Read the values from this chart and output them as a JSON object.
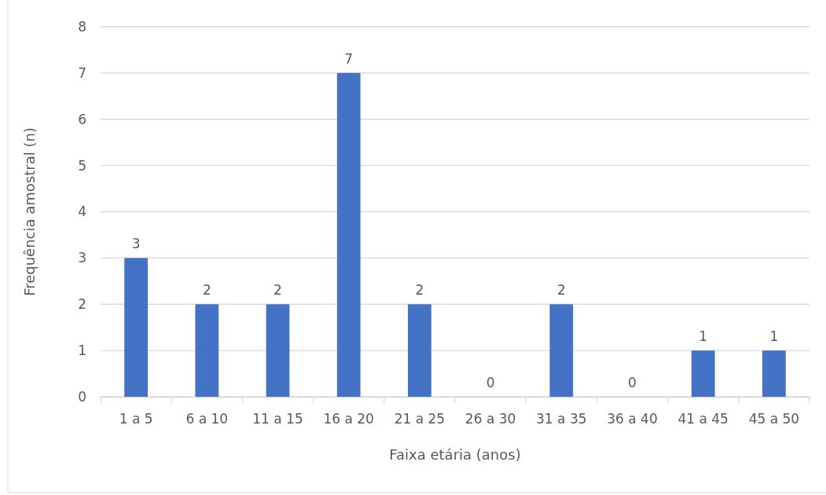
{
  "chart_data": {
    "type": "bar",
    "xlabel": "Faixa etária (anos)",
    "ylabel": "Frequência amostral (n)",
    "categories": [
      "1 a 5",
      "6 a 10",
      "11 a 15",
      "16 a 20",
      "21 a 25",
      "26 a 30",
      "31 a 35",
      "36 a 40",
      "41 a 45",
      "45 a 50"
    ],
    "values": [
      3,
      2,
      2,
      7,
      2,
      0,
      2,
      0,
      1,
      1
    ],
    "color": "#4472c4",
    "ylim": [
      0,
      8
    ],
    "yticks": [
      0,
      1,
      2,
      3,
      4,
      5,
      6,
      7,
      8
    ],
    "grid": "y",
    "data_labels": true
  }
}
